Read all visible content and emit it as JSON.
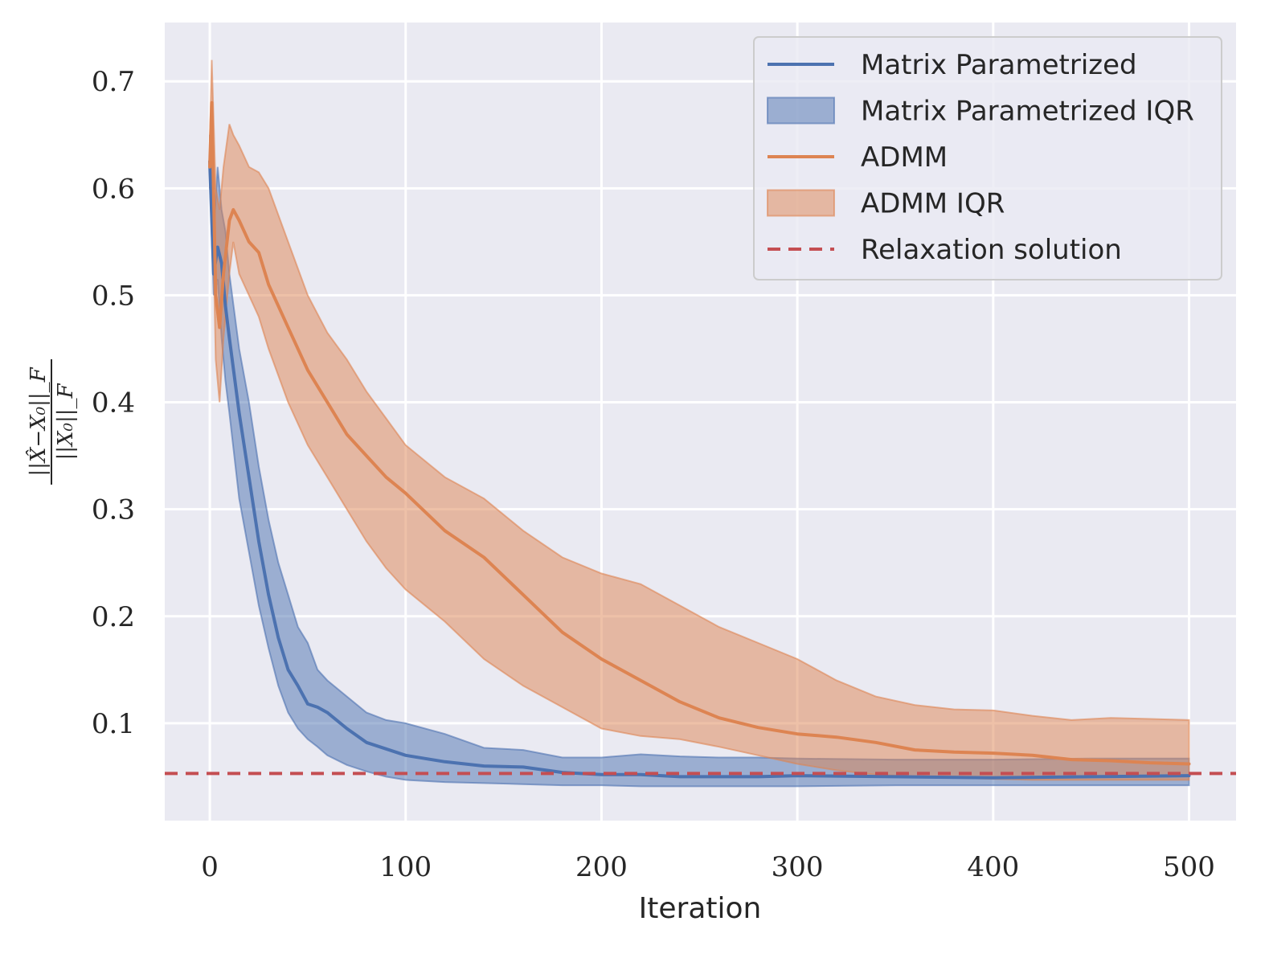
{
  "chart_data": {
    "type": "line",
    "title": "",
    "xlabel": "Iteration",
    "ylabel": {
      "numerator": "||X̂−X₀||_F",
      "denominator": "||X₀||_F"
    },
    "xlim": [
      -23,
      524
    ],
    "ylim": [
      0.009,
      0.755
    ],
    "xticks": [
      0,
      100,
      200,
      300,
      400,
      500
    ],
    "yticks": [
      0.1,
      0.2,
      0.3,
      0.4,
      0.5,
      0.6,
      0.7
    ],
    "xtick_labels": [
      "0",
      "100",
      "200",
      "300",
      "400",
      "500"
    ],
    "ytick_labels": [
      "0.1",
      "0.2",
      "0.3",
      "0.4",
      "0.5",
      "0.6",
      "0.7"
    ],
    "grid": true,
    "legend_position": "top-right",
    "series": [
      {
        "name": "Matrix Parametrized",
        "kind": "line",
        "color": "#4c72b0",
        "x": [
          0,
          2,
          4,
          6,
          8,
          10,
          15,
          20,
          25,
          30,
          35,
          40,
          45,
          50,
          55,
          60,
          70,
          80,
          90,
          100,
          120,
          140,
          160,
          180,
          200,
          220,
          240,
          260,
          280,
          300,
          350,
          400,
          450,
          500
        ],
        "values": [
          0.625,
          0.52,
          0.545,
          0.53,
          0.49,
          0.46,
          0.39,
          0.33,
          0.27,
          0.22,
          0.18,
          0.15,
          0.135,
          0.118,
          0.115,
          0.11,
          0.095,
          0.082,
          0.076,
          0.07,
          0.064,
          0.06,
          0.059,
          0.054,
          0.052,
          0.052,
          0.05,
          0.05,
          0.05,
          0.051,
          0.05,
          0.049,
          0.05,
          0.051
        ]
      },
      {
        "name": "Matrix Parametrized IQR",
        "kind": "band",
        "color": "#4c72b0",
        "x": [
          0,
          2,
          4,
          6,
          8,
          10,
          15,
          20,
          25,
          30,
          35,
          40,
          45,
          50,
          55,
          60,
          70,
          80,
          90,
          100,
          120,
          140,
          160,
          180,
          200,
          220,
          240,
          260,
          280,
          300,
          350,
          400,
          450,
          500
        ],
        "lower": [
          0.61,
          0.5,
          0.515,
          0.46,
          0.42,
          0.39,
          0.31,
          0.26,
          0.21,
          0.17,
          0.135,
          0.11,
          0.095,
          0.085,
          0.078,
          0.07,
          0.061,
          0.055,
          0.05,
          0.047,
          0.045,
          0.044,
          0.043,
          0.042,
          0.042,
          0.041,
          0.041,
          0.041,
          0.041,
          0.041,
          0.042,
          0.042,
          0.042,
          0.042
        ],
        "upper": [
          0.65,
          0.56,
          0.62,
          0.58,
          0.56,
          0.52,
          0.45,
          0.4,
          0.34,
          0.29,
          0.25,
          0.22,
          0.19,
          0.175,
          0.15,
          0.14,
          0.125,
          0.11,
          0.103,
          0.1,
          0.09,
          0.077,
          0.075,
          0.068,
          0.068,
          0.071,
          0.069,
          0.068,
          0.068,
          0.067,
          0.066,
          0.066,
          0.067,
          0.067
        ]
      },
      {
        "name": "ADMM",
        "kind": "line",
        "color": "#dd8452",
        "x": [
          0,
          1,
          3,
          5,
          7,
          10,
          12,
          15,
          20,
          25,
          30,
          40,
          50,
          60,
          70,
          80,
          90,
          100,
          120,
          140,
          160,
          180,
          200,
          220,
          240,
          260,
          280,
          300,
          320,
          340,
          360,
          380,
          400,
          420,
          440,
          460,
          480,
          500
        ],
        "values": [
          0.62,
          0.68,
          0.5,
          0.47,
          0.52,
          0.57,
          0.58,
          0.57,
          0.55,
          0.54,
          0.51,
          0.47,
          0.43,
          0.4,
          0.37,
          0.35,
          0.33,
          0.315,
          0.28,
          0.255,
          0.22,
          0.185,
          0.16,
          0.14,
          0.12,
          0.105,
          0.096,
          0.09,
          0.087,
          0.082,
          0.075,
          0.073,
          0.072,
          0.07,
          0.066,
          0.065,
          0.063,
          0.062
        ]
      },
      {
        "name": "ADMM IQR",
        "kind": "band",
        "color": "#dd8452",
        "x": [
          0,
          1,
          3,
          5,
          7,
          10,
          12,
          15,
          20,
          25,
          30,
          40,
          50,
          60,
          70,
          80,
          90,
          100,
          120,
          140,
          160,
          180,
          200,
          220,
          240,
          260,
          280,
          300,
          320,
          340,
          360,
          380,
          400,
          420,
          440,
          460,
          480,
          500
        ],
        "lower": [
          0.6,
          0.62,
          0.44,
          0.4,
          0.46,
          0.52,
          0.55,
          0.52,
          0.5,
          0.48,
          0.45,
          0.4,
          0.36,
          0.33,
          0.3,
          0.27,
          0.245,
          0.225,
          0.195,
          0.16,
          0.135,
          0.115,
          0.095,
          0.088,
          0.085,
          0.078,
          0.07,
          0.062,
          0.056,
          0.052,
          0.05,
          0.049,
          0.048,
          0.047,
          0.047,
          0.047,
          0.047,
          0.047
        ],
        "upper": [
          0.64,
          0.72,
          0.6,
          0.58,
          0.62,
          0.66,
          0.65,
          0.64,
          0.62,
          0.615,
          0.6,
          0.55,
          0.5,
          0.465,
          0.44,
          0.41,
          0.385,
          0.36,
          0.33,
          0.31,
          0.28,
          0.255,
          0.24,
          0.23,
          0.21,
          0.19,
          0.175,
          0.16,
          0.14,
          0.125,
          0.117,
          0.113,
          0.112,
          0.107,
          0.103,
          0.105,
          0.104,
          0.103
        ]
      },
      {
        "name": "Relaxation solution",
        "kind": "hline",
        "color": "#c44e52",
        "y": 0.053
      }
    ],
    "legend": [
      {
        "label": "Matrix Parametrized",
        "kind": "line",
        "color": "#4c72b0"
      },
      {
        "label": "Matrix Parametrized IQR",
        "kind": "band",
        "color": "#4c72b0"
      },
      {
        "label": "ADMM",
        "kind": "line",
        "color": "#dd8452"
      },
      {
        "label": "ADMM IQR",
        "kind": "band",
        "color": "#dd8452"
      },
      {
        "label": "Relaxation solution",
        "kind": "dashed",
        "color": "#c44e52"
      }
    ]
  }
}
